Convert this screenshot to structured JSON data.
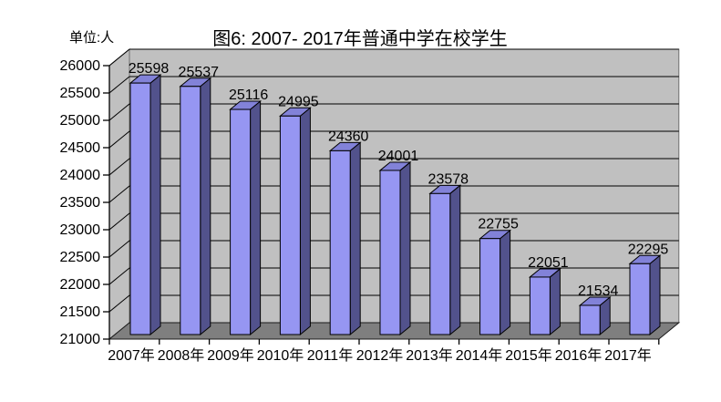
{
  "chart_data": {
    "type": "bar",
    "projection": "3d",
    "title": "图6: 2007- 2017年普通中学在校学生",
    "unit_label": "单位:人",
    "categories": [
      "2007年",
      "2008年",
      "2009年",
      "2010年",
      "2011年",
      "2012年",
      "2013年",
      "2014年",
      "2015年",
      "2016年",
      "2017年"
    ],
    "values": [
      25598,
      25537,
      25116,
      24995,
      24360,
      24001,
      23578,
      22755,
      22051,
      21534,
      22295
    ],
    "value_labels": [
      "25598",
      "25537",
      "25116",
      "24995",
      "24360",
      "24001",
      "23578",
      "22755",
      "22051",
      "21534",
      "22295"
    ],
    "xlabel": "",
    "ylabel": "",
    "ylim": [
      21000,
      26000
    ],
    "ytick_step": 500,
    "ytick_labels": [
      "21000",
      "21500",
      "22000",
      "22500",
      "23000",
      "23500",
      "24000",
      "24500",
      "25000",
      "25500",
      "26000"
    ],
    "grid": true,
    "legend": "none",
    "colors": {
      "bar_front": "#9696F2",
      "bar_top": "#8282D8",
      "bar_side": "#52528C",
      "wall": "#C0C0C0",
      "floor": "#7F7F7F",
      "grid_line": "#000000",
      "axis_line": "#000000",
      "text": "#000000",
      "background": "#FFFFFF"
    }
  }
}
